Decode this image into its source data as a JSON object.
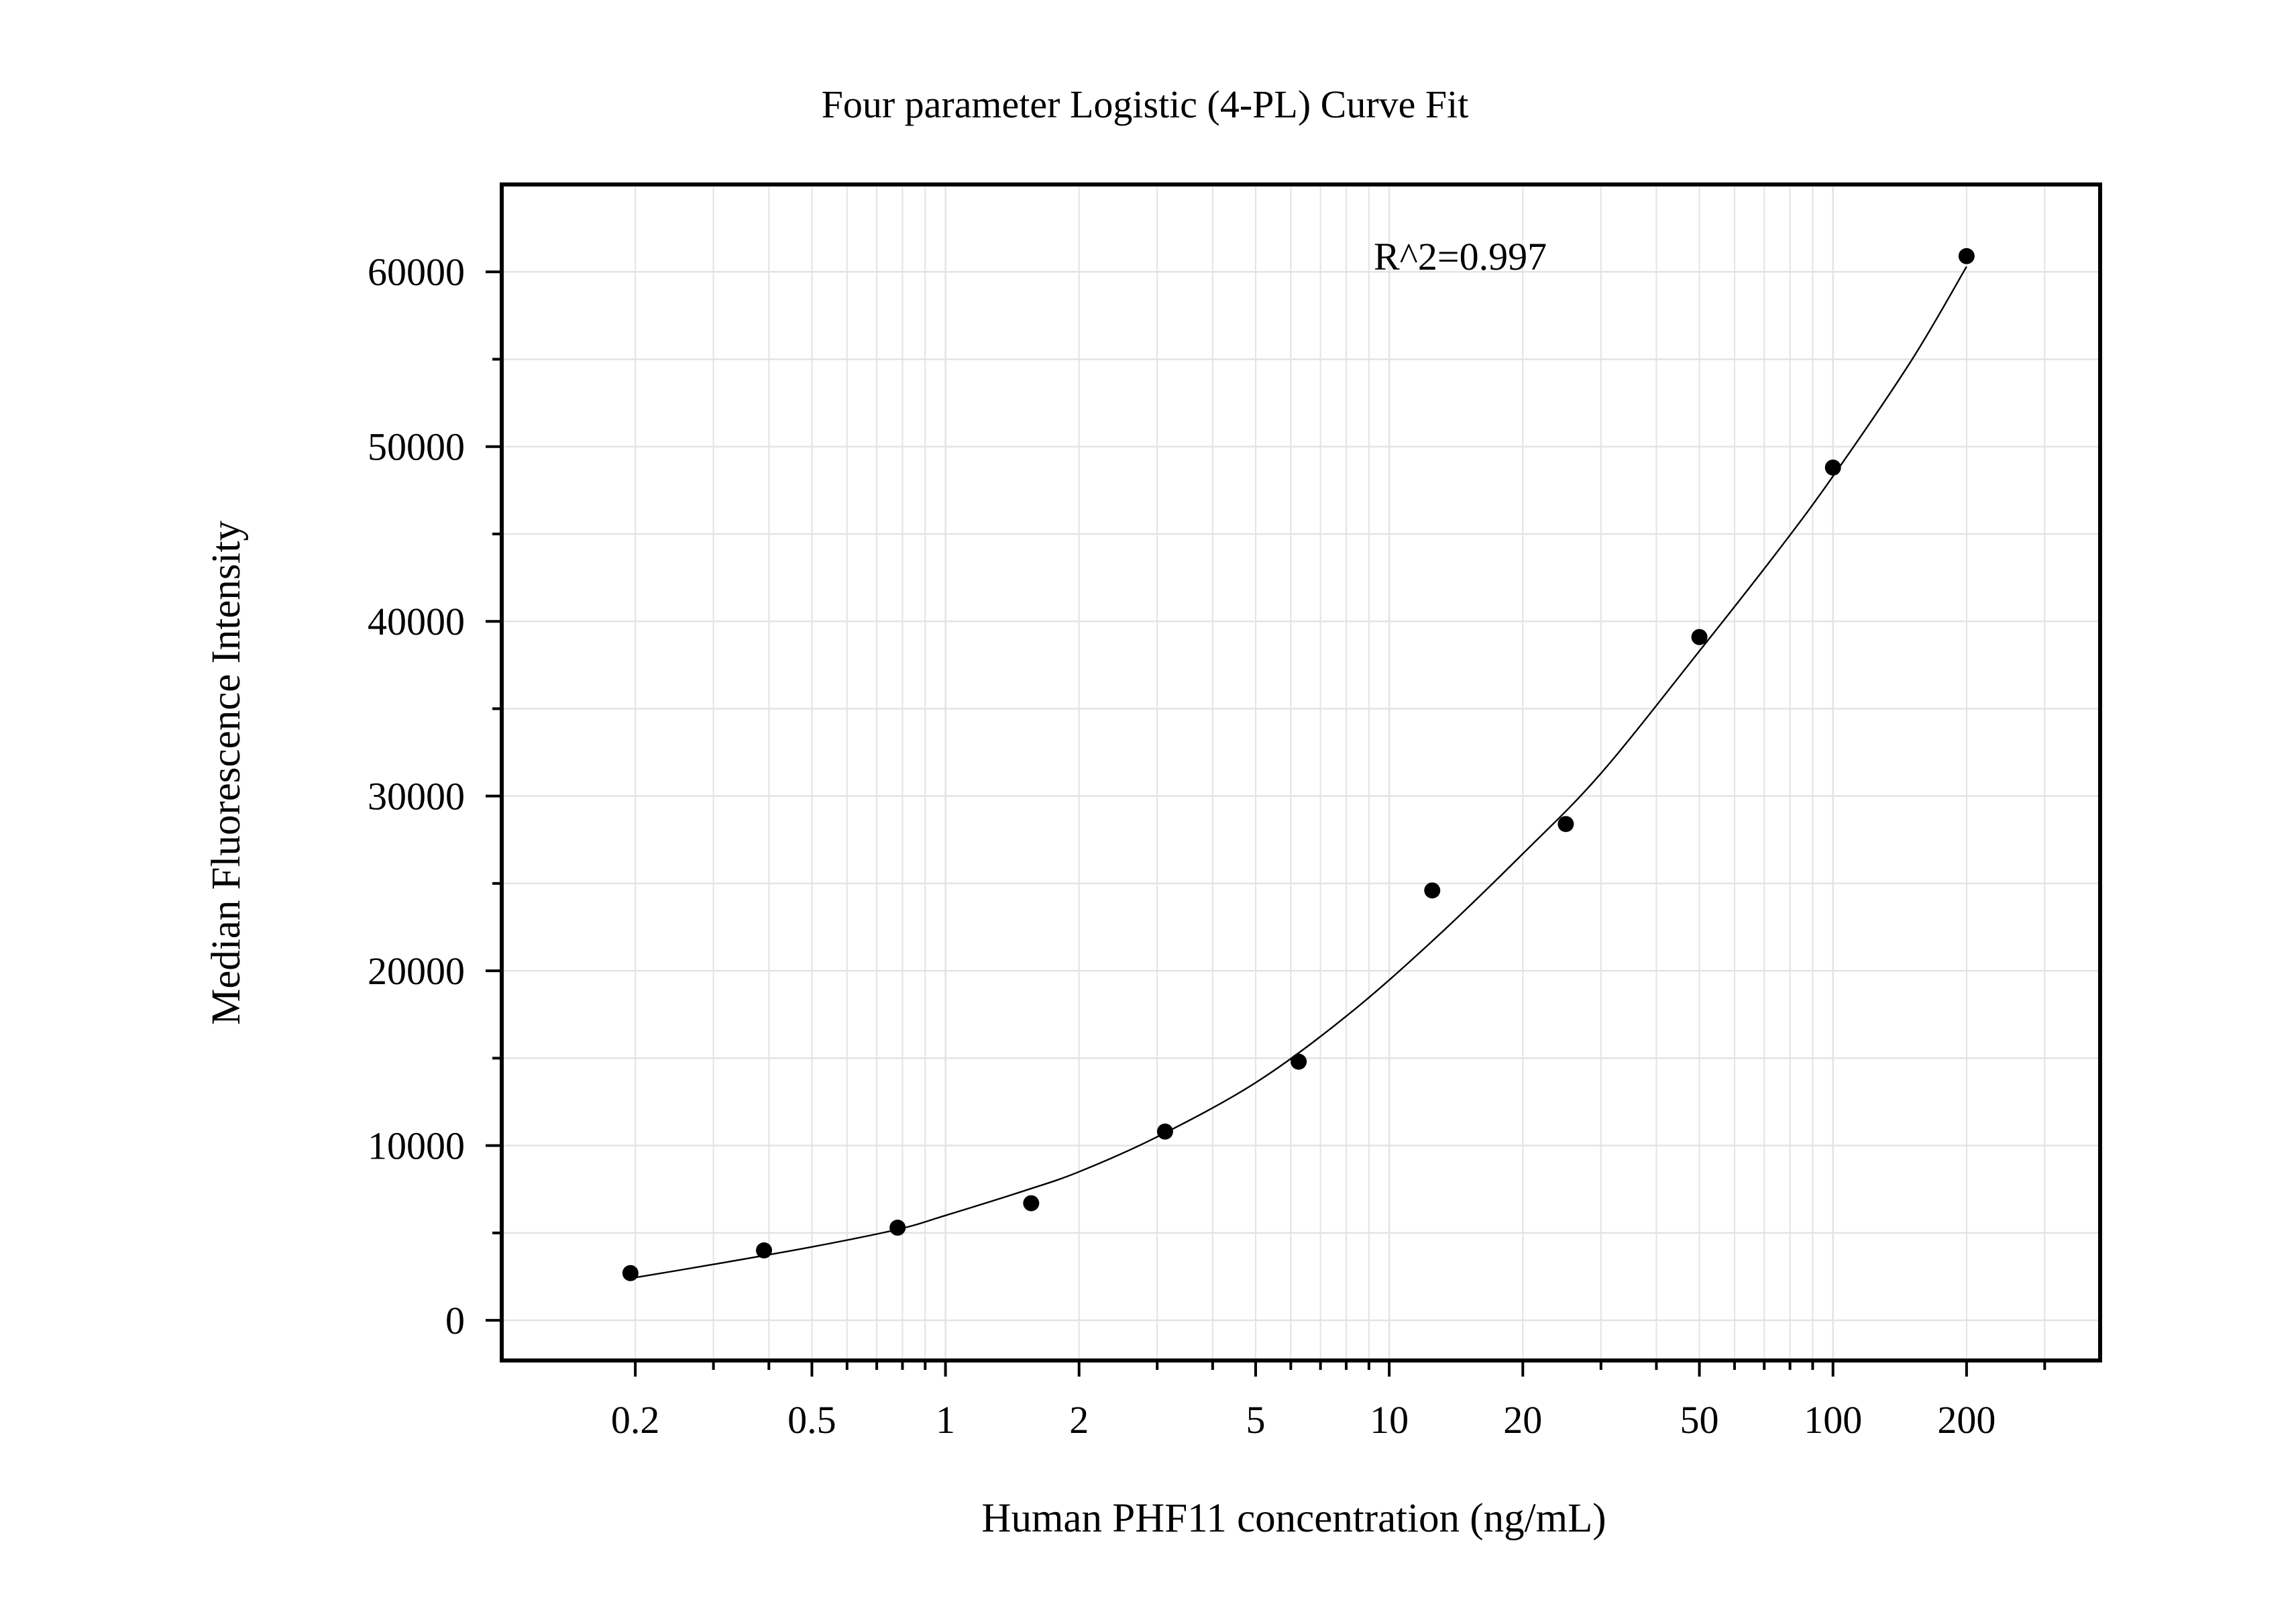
{
  "chart_data": {
    "type": "scatter",
    "title": "Four parameter Logistic (4-PL) Curve Fit",
    "xlabel": "Human PHF11 concentration (ng/mL)",
    "ylabel": "Median Fluorescence Intensity",
    "x_scale": "log",
    "xlim": [
      0.1,
      400
    ],
    "ylim": [
      -2300,
      65000
    ],
    "x_ticks": [
      0.2,
      0.5,
      1,
      2,
      5,
      10,
      20,
      50,
      100,
      200
    ],
    "x_tick_labels": [
      "0.2",
      "0.5",
      "1",
      "2",
      "5",
      "10",
      "20",
      "50",
      "100",
      "200"
    ],
    "y_ticks": [
      0,
      10000,
      20000,
      30000,
      40000,
      50000,
      60000
    ],
    "y_tick_labels": [
      "0",
      "10000",
      "20000",
      "30000",
      "40000",
      "50000",
      "60000"
    ],
    "grid": true,
    "annotation": "R^2=0.997",
    "points": {
      "x": [
        0.195,
        0.39,
        0.78,
        1.56,
        3.125,
        6.25,
        12.5,
        25,
        50,
        100,
        200
      ],
      "y": [
        2700,
        4000,
        5300,
        6700,
        10800,
        14800,
        24600,
        28400,
        39100,
        48800,
        60900
      ]
    },
    "fit_curve": {
      "x": [
        0.195,
        0.3,
        0.5,
        0.78,
        1,
        1.5,
        2,
        3,
        5,
        8,
        12.5,
        20,
        30,
        50,
        75,
        100,
        150,
        200
      ],
      "y": [
        2400,
        3200,
        4200,
        5200,
        6000,
        7400,
        8500,
        10500,
        13600,
        17400,
        21700,
        26700,
        31300,
        38300,
        44000,
        48300,
        54900,
        60300
      ]
    },
    "colors": {
      "points": "#000000",
      "curve": "#000000",
      "grid": "#e3e3e3",
      "axes": "#000000"
    }
  }
}
